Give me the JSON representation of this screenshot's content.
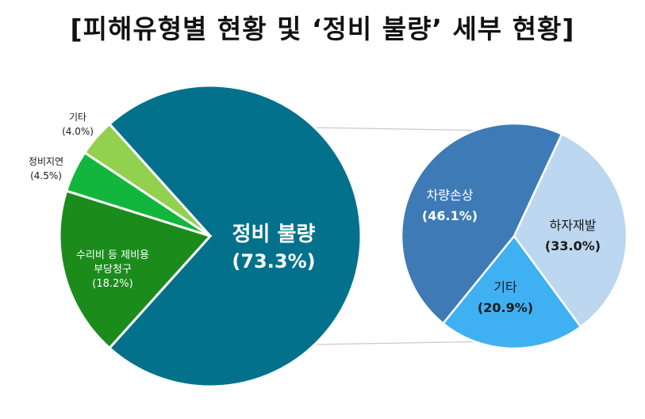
{
  "title": "[피해유형별 현황 및 ‘정비 불량’ 세부 현황]",
  "colors": {
    "main_slices": [
      "#03718c",
      "#1b8c1b",
      "#13b63c",
      "#92d050"
    ],
    "sub_slices": [
      "#3e7bb6",
      "#3fb0f2",
      "#bcd7ef"
    ],
    "connector": "#c8c8c8",
    "label_on_dark": "#ffffff",
    "label_on_light": "#1a1a1a"
  },
  "chart_data": [
    {
      "type": "pie",
      "slices": [
        {
          "label": "정비 불량",
          "value": 73.3,
          "pct_label": "(73.3%)"
        },
        {
          "label": "수리비 등 제비용 부당청구",
          "label_lines": [
            "수리비 등 제비용",
            "부당청구"
          ],
          "value": 18.2,
          "pct_label": "(18.2%)"
        },
        {
          "label": "정비지연",
          "value": 4.5,
          "pct_label": "(4.5%)"
        },
        {
          "label": "기타",
          "value": 4.0,
          "pct_label": "(4.0%)"
        }
      ]
    },
    {
      "type": "pie",
      "slices": [
        {
          "label": "차량손상",
          "value": 46.1,
          "pct_label": "(46.1%)"
        },
        {
          "label": "기타",
          "value": 20.9,
          "pct_label": "(20.9%)"
        },
        {
          "label": "하자재발",
          "value": 33.0,
          "pct_label": "(33.0%)"
        }
      ]
    }
  ]
}
